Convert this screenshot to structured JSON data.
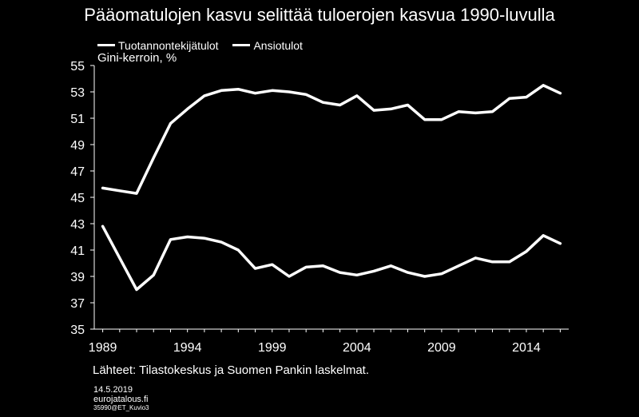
{
  "chart_data": {
    "type": "line",
    "title": "Pääomatulojen kasvu selittää tuloerojen kasvua 1990-luvulla",
    "ylabel": "Gini-kerroin, %",
    "xlabel": "",
    "ylim": [
      35,
      55
    ],
    "xlim": [
      1988.5,
      2016.5
    ],
    "yticks": [
      "35",
      "37",
      "39",
      "41",
      "43",
      "45",
      "47",
      "49",
      "51",
      "53",
      "55"
    ],
    "xticks": [
      "1989",
      "1994",
      "1999",
      "2004",
      "2009",
      "2014"
    ],
    "grid": false,
    "legend": "top-left",
    "x": [
      1989,
      1990,
      1991,
      1992,
      1993,
      1994,
      1995,
      1996,
      1997,
      1998,
      1999,
      2000,
      2001,
      2002,
      2003,
      2004,
      2005,
      2006,
      2007,
      2008,
      2009,
      2010,
      2011,
      2012,
      2013,
      2014,
      2015,
      2016
    ],
    "series": [
      {
        "name": "Tuotannontekijätulot",
        "color": "#ffffff",
        "values": [
          45.7,
          45.5,
          45.3,
          48.0,
          50.6,
          51.7,
          52.7,
          53.1,
          53.2,
          52.9,
          53.1,
          53.0,
          52.8,
          52.2,
          52.0,
          52.7,
          51.6,
          51.7,
          52.0,
          50.9,
          50.9,
          51.5,
          51.4,
          51.5,
          52.5,
          52.6,
          53.5,
          52.9
        ]
      },
      {
        "name": "Ansiotulot",
        "color": "#ffffff",
        "values": [
          42.8,
          40.4,
          38.0,
          39.1,
          41.8,
          42.0,
          41.9,
          41.6,
          41.0,
          39.6,
          39.9,
          39.0,
          39.7,
          39.8,
          39.3,
          39.1,
          39.4,
          39.8,
          39.3,
          39.0,
          39.2,
          39.8,
          40.4,
          40.1,
          40.1,
          40.9,
          42.1,
          41.5
        ]
      }
    ]
  },
  "source": "Lähteet: Tilastokeskus ja Suomen Pankin laskelmat.",
  "footer": {
    "date": "14.5.2019",
    "site": "eurojatalous.fi",
    "code": "35990@ET_Kuvio3"
  }
}
